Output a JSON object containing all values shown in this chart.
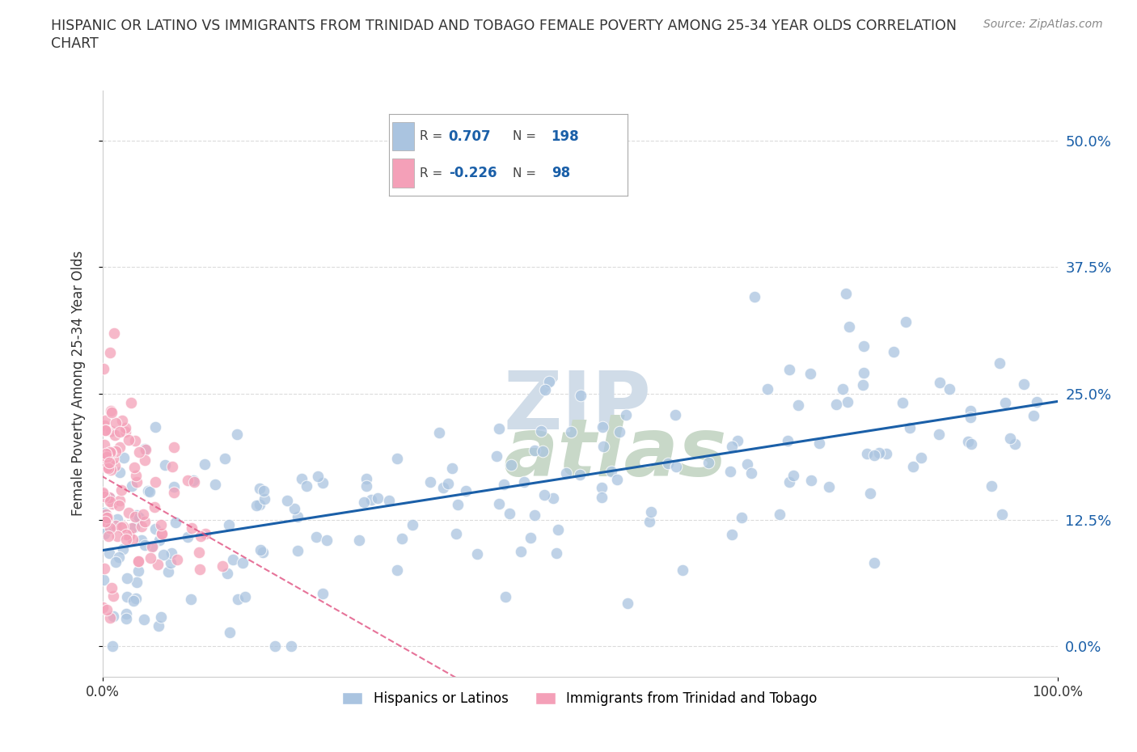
{
  "title_line1": "HISPANIC OR LATINO VS IMMIGRANTS FROM TRINIDAD AND TOBAGO FEMALE POVERTY AMONG 25-34 YEAR OLDS CORRELATION",
  "title_line2": "CHART",
  "source": "Source: ZipAtlas.com",
  "ylabel": "Female Poverty Among 25-34 Year Olds",
  "xlim": [
    0,
    100
  ],
  "ylim": [
    -3,
    55
  ],
  "yticks": [
    0,
    12.5,
    25.0,
    37.5,
    50.0
  ],
  "xticks": [
    0,
    100
  ],
  "blue_R": 0.707,
  "blue_N": 198,
  "pink_R": -0.226,
  "pink_N": 98,
  "blue_color": "#aac4e0",
  "pink_color": "#f4a0b8",
  "blue_line_color": "#1a5fa8",
  "pink_line_color": "#e05080",
  "pink_line_dash": true,
  "watermark_top": "ZIP",
  "watermark_bot": "atlas",
  "watermark_color": "#d0dce8",
  "watermark_color2": "#c8d8c8",
  "legend1": "Hispanics or Latinos",
  "legend2": "Immigrants from Trinidad and Tobago",
  "background_color": "#ffffff",
  "grid_color": "#cccccc"
}
